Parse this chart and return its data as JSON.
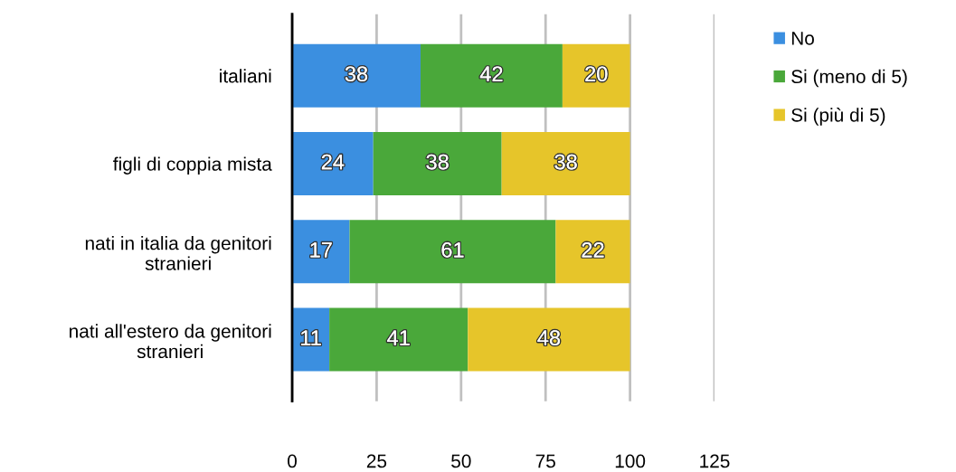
{
  "chart_data": {
    "type": "bar",
    "orientation": "horizontal",
    "stacked": true,
    "categories": [
      "italiani",
      "figli di coppia mista",
      "nati in italia da genitori\nstranieri",
      "nati all'estero da genitori\nstranieri"
    ],
    "series": [
      {
        "name": "No",
        "color": "#3b8fe0",
        "values": [
          38,
          24,
          17,
          11
        ]
      },
      {
        "name": "Si (meno di 5)",
        "color": "#4aa83a",
        "values": [
          42,
          38,
          61,
          41
        ]
      },
      {
        "name": "Si (più di 5)",
        "color": "#e6c52a",
        "values": [
          20,
          38,
          22,
          48
        ]
      }
    ],
    "xlim": [
      0,
      125
    ],
    "xticks": [
      0,
      25,
      50,
      75,
      100,
      125
    ],
    "grid": "x",
    "legend": "right",
    "data_labels": true
  }
}
